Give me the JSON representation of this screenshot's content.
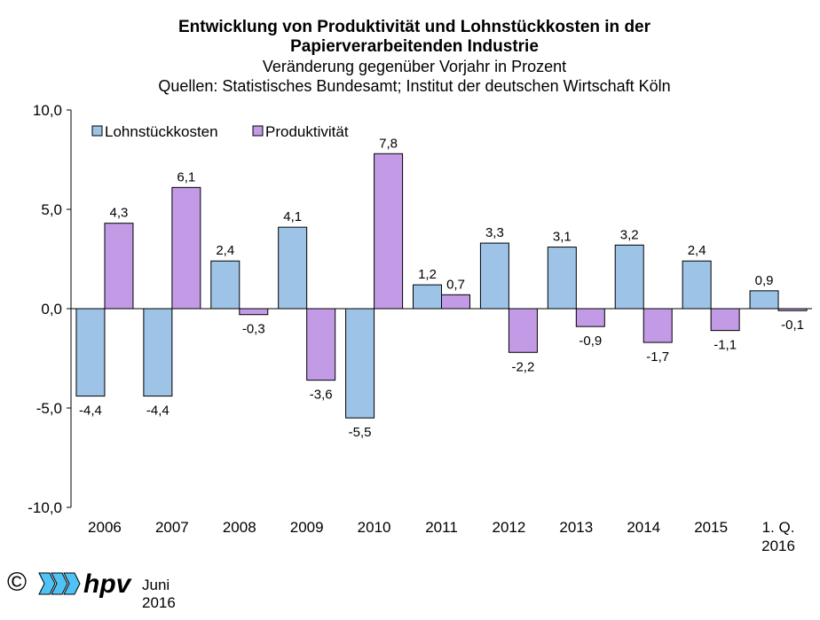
{
  "header": {
    "title_line1": "Entwicklung von Produktivität und Lohnstückkosten in der",
    "title_line2": "Papierverarbeitenden Industrie",
    "subtitle": "Veränderung gegenüber Vorjahr in Prozent",
    "sources": "Quellen: Statistisches Bundesamt; Institut der deutschen Wirtschaft Köln"
  },
  "footer": {
    "copyright_symbol": "©",
    "logo_text": "hpv",
    "date": "Juni 2016"
  },
  "colors": {
    "lohn": "#9dc3e6",
    "prod": "#c29ae6",
    "stroke": "#000000"
  },
  "chart_data": {
    "type": "bar",
    "categories": [
      "2006",
      "2007",
      "2008",
      "2009",
      "2010",
      "2011",
      "2012",
      "2013",
      "2014",
      "2015",
      "1. Q. 2016"
    ],
    "series": [
      {
        "name": "Lohnstückkosten",
        "values": [
          -4.4,
          -4.4,
          2.4,
          4.1,
          -5.5,
          1.2,
          3.3,
          3.1,
          3.2,
          2.4,
          0.9
        ]
      },
      {
        "name": "Produktivität",
        "values": [
          4.3,
          6.1,
          -0.3,
          -3.6,
          7.8,
          0.7,
          -2.2,
          -0.9,
          -1.7,
          -1.1,
          -0.1
        ]
      }
    ],
    "ylim": [
      -10,
      10
    ],
    "yticks": [
      -10,
      -5,
      0,
      5,
      10
    ],
    "ytick_labels": [
      "-10,0",
      "-5,0",
      "0,0",
      "5,0",
      "10,0"
    ],
    "xlabel": "",
    "ylabel": "",
    "legend_position": "top-left",
    "data_labels": true,
    "grid": false
  }
}
